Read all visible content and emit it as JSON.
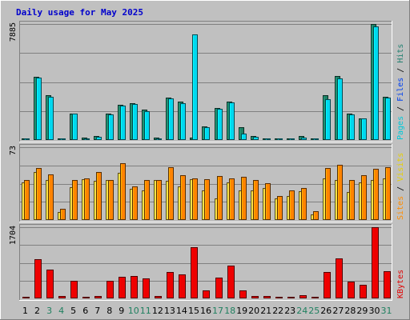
{
  "chart_data": {
    "type": "bar",
    "title": "Daily usage for May 2025",
    "categories": [
      "1",
      "2",
      "3",
      "4",
      "5",
      "6",
      "7",
      "8",
      "9",
      "10",
      "11",
      "12",
      "13",
      "14",
      "15",
      "16",
      "17",
      "18",
      "19",
      "20",
      "21",
      "22",
      "23",
      "24",
      "25",
      "26",
      "27",
      "28",
      "29",
      "30",
      "31"
    ],
    "weekend_days": [
      "3",
      "4",
      "10",
      "11",
      "17",
      "18",
      "24",
      "25",
      "31"
    ],
    "panels": [
      {
        "name": "hits-files-pages",
        "max_label": "7885",
        "ymax": 7885,
        "side_label_parts": [
          {
            "text": "Pages",
            "color": "#00c8d8"
          },
          {
            "text": " / ",
            "color": "#000000"
          },
          {
            "text": "Files",
            "color": "#0040f0"
          },
          {
            "text": " / ",
            "color": "#000000"
          },
          {
            "text": "Hits",
            "color": "#208070"
          }
        ],
        "series": [
          {
            "name": "Hits",
            "color": "#1d8065",
            "values": [
              120,
              4300,
              3020,
              110,
              1820,
              160,
              250,
              1800,
              2390,
              2480,
              2080,
              150,
              2900,
              2610,
              160,
              900,
              2180,
              2620,
              850,
              280,
              120,
              80,
              100,
              280,
              70,
              3020,
              4340,
              1800,
              1480,
              7885,
              2940
            ]
          },
          {
            "name": "Pages",
            "color": "#00d8f0",
            "values": [
              90,
              4220,
              2920,
              80,
              1800,
              100,
              200,
              1750,
              2330,
              2420,
              1950,
              100,
              2830,
              2520,
              7160,
              880,
              2120,
              2540,
              420,
              210,
              80,
              60,
              70,
              170,
              40,
              2790,
              4170,
              1760,
              1450,
              7700,
              2900
            ]
          }
        ]
      },
      {
        "name": "visits-sites",
        "max_label": "73",
        "ymax": 73,
        "side_label_parts": [
          {
            "text": "Sites",
            "color": "#ff8c00"
          },
          {
            "text": " / ",
            "color": "#000000"
          },
          {
            "text": "Visits",
            "color": "#e8d000"
          }
        ],
        "series": [
          {
            "name": "Visits",
            "color": "#ffd040",
            "values": [
              38,
              48,
              40,
              8,
              33,
              41,
              39,
              40,
              47,
              31,
              30,
              40,
              39,
              34,
              41,
              30,
              22,
              38,
              30,
              30,
              32,
              22,
              24,
              29,
              6,
              42,
              40,
              28,
              38,
              40,
              42
            ]
          },
          {
            "name": "Sites",
            "color": "#ff8400",
            "values": [
              40,
              52,
              46,
              11,
              40,
              42,
              48,
              40,
              57,
              34,
              40,
              40,
              53,
              45,
              42,
              41,
              44,
              42,
              43,
              40,
              37,
              24,
              30,
              32,
              9,
              52,
              55,
              40,
              45,
              51,
              53
            ]
          }
        ]
      },
      {
        "name": "kbytes",
        "max_label": "1704",
        "ymax": 1704,
        "side_label_parts": [
          {
            "text": "KBytes",
            "color": "#e00000"
          }
        ],
        "series": [
          {
            "name": "KBytes",
            "color": "#ee0000",
            "values": [
              40,
              940,
              680,
              50,
              420,
              40,
              50,
              420,
              520,
              530,
              470,
              50,
              630,
              580,
              1220,
              200,
              490,
              790,
              190,
              50,
              50,
              20,
              40,
              70,
              30,
              640,
              950,
              400,
              330,
              1704,
              650
            ]
          }
        ]
      }
    ]
  }
}
